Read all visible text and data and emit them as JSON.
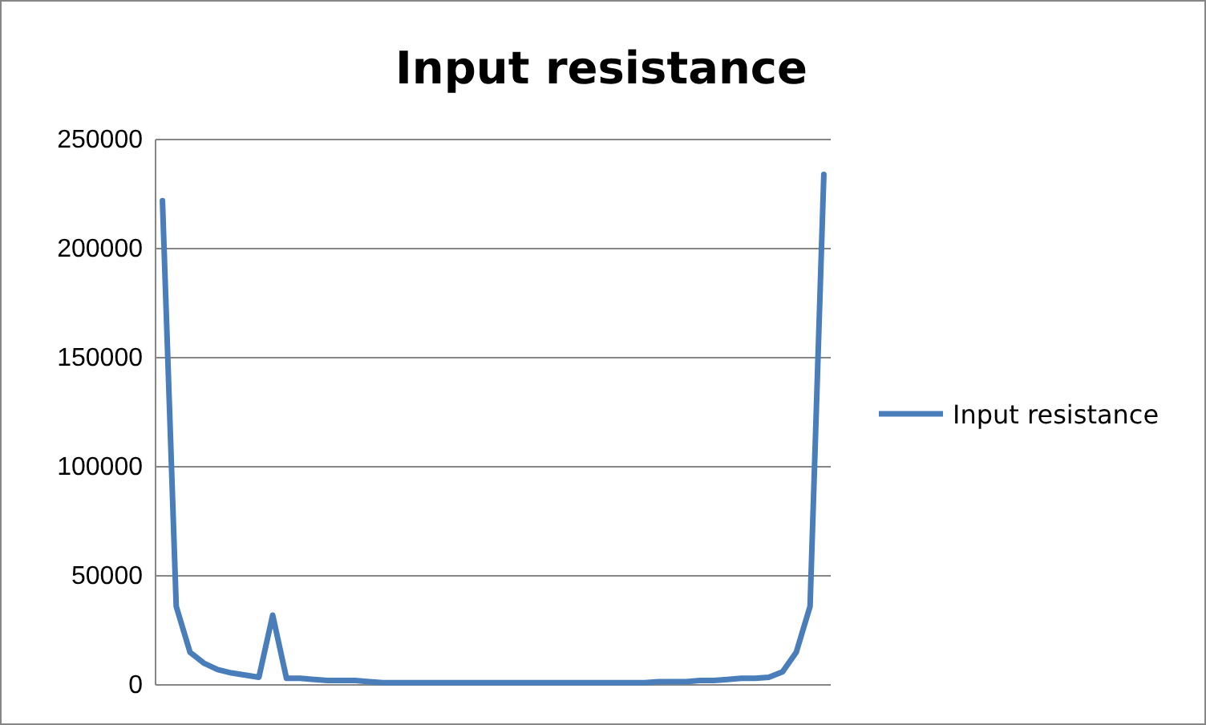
{
  "chart_data": {
    "type": "line",
    "title": "Input resistance",
    "categories": [
      null,
      null,
      null,
      null,
      null,
      null,
      null,
      null,
      null,
      null,
      null,
      null,
      null,
      null,
      null,
      null,
      null,
      null,
      null,
      null,
      null,
      null,
      null,
      null,
      null,
      null,
      null,
      null,
      null,
      null,
      null,
      null,
      null,
      null,
      null,
      null,
      null,
      null,
      null,
      null,
      null,
      null,
      null,
      null,
      null,
      null,
      null,
      null,
      null
    ],
    "series": [
      {
        "name": "Input resistance",
        "color": "#4a7ebb",
        "values": [
          222000,
          36000,
          15000,
          10000,
          7000,
          5500,
          4500,
          3500,
          32000,
          3000,
          3000,
          2500,
          2000,
          2000,
          2000,
          1500,
          1000,
          1000,
          1000,
          1000,
          1000,
          1000,
          1000,
          1000,
          1000,
          1000,
          1000,
          1000,
          1000,
          1000,
          1000,
          1000,
          1000,
          1000,
          1000,
          1000,
          1500,
          1500,
          1500,
          2000,
          2000,
          2500,
          3000,
          3000,
          3500,
          6000,
          15000,
          36000,
          234000
        ]
      }
    ],
    "ylim": [
      0,
      250000
    ],
    "yticks": [
      0,
      50000,
      100000,
      150000,
      200000,
      250000
    ],
    "grid": "y",
    "legend": "right",
    "marker": "none",
    "line_style": "solid"
  }
}
